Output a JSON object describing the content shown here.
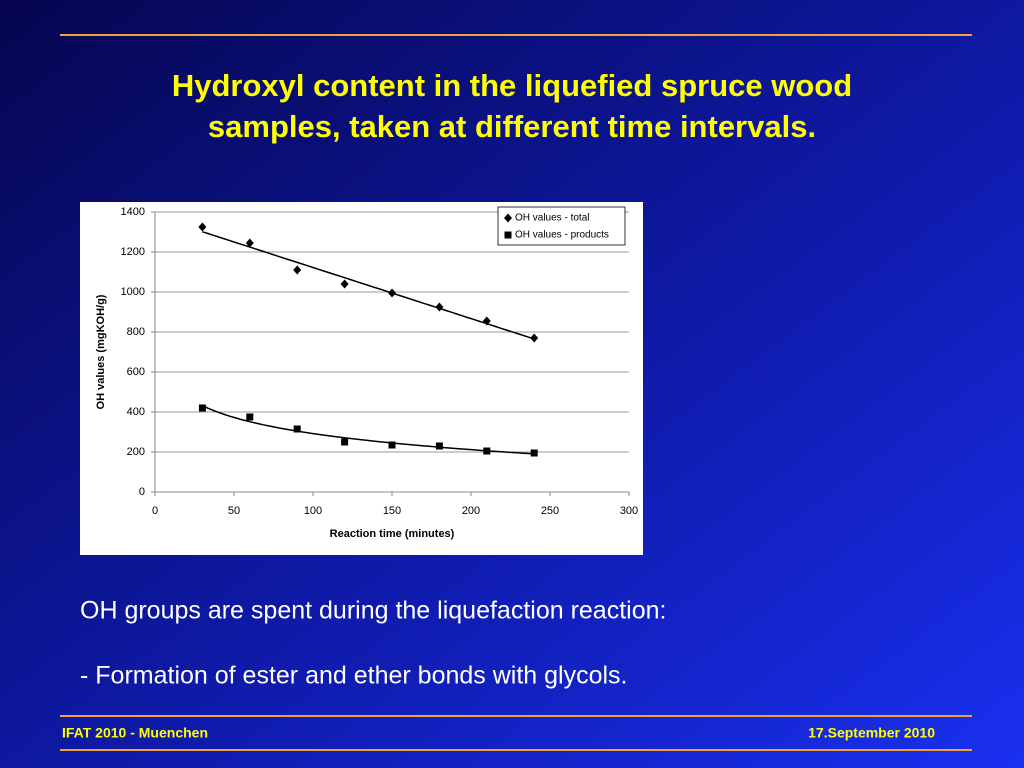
{
  "slide": {
    "title": [
      "Hydroxyl content in the liquefied spruce wood",
      "samples, taken at different time intervals."
    ],
    "body": [
      "OH groups are spent during the liquefaction reaction:",
      "- Formation of ester and ether bonds with glycols."
    ],
    "footer": {
      "left": "IFAT 2010 - Muenchen",
      "right": "17.September 2010"
    }
  },
  "chart_data": {
    "type": "scatter",
    "x_label": "Reaction time (minutes)",
    "y_label": "OH values (mgKOH/g)",
    "x": [
      30,
      60,
      90,
      120,
      150,
      180,
      210,
      240
    ],
    "series": [
      {
        "name": "OH values - total",
        "color": "#000000",
        "marker": "diamond",
        "trendline": "linear",
        "values": [
          1325,
          1245,
          1110,
          1040,
          995,
          925,
          855,
          770
        ]
      },
      {
        "name": "OH values - products",
        "color": "#000000",
        "marker": "square",
        "trendline": "logarithmic",
        "values": [
          420,
          375,
          315,
          250,
          235,
          230,
          205,
          195
        ]
      }
    ],
    "xlim": [
      0,
      300
    ],
    "xticks": [
      0,
      50,
      100,
      150,
      200,
      250,
      300
    ],
    "ylim": [
      0,
      1400
    ],
    "yticks": [
      0,
      200,
      400,
      600,
      800,
      1000,
      1200,
      1400
    ],
    "grid": true,
    "legend": "top-right"
  }
}
